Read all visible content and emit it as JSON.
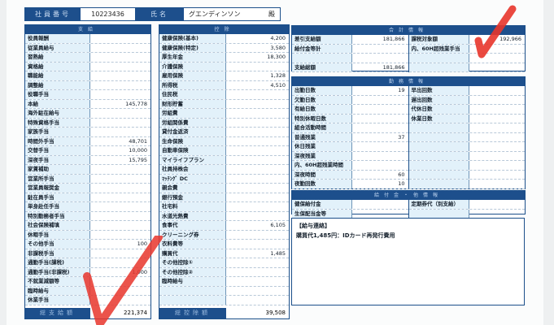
{
  "header": {
    "employee_no_label": "社員番号",
    "employee_no": "10223436",
    "name_label": "氏名",
    "name": "グエンディンソン",
    "honorific": "殿"
  },
  "payments": {
    "title": "支給",
    "items": [
      [
        "役員報酬",
        ""
      ],
      [
        "従業員給与",
        ""
      ],
      [
        "習熟給",
        ""
      ],
      [
        "資格給",
        ""
      ],
      [
        "職能給",
        ""
      ],
      [
        "調整給",
        ""
      ],
      [
        "役職手当",
        ""
      ],
      [
        "本給",
        "145,778"
      ],
      [
        "海外駐在給与",
        ""
      ],
      [
        "特殊資格手当",
        ""
      ],
      [
        "家族手当",
        ""
      ],
      [
        "時間外手当",
        "48,701"
      ],
      [
        "交替手当",
        "10,000"
      ],
      [
        "深夜手当",
        "15,795"
      ],
      [
        "家賃補助",
        ""
      ],
      [
        "営業所手当",
        ""
      ],
      [
        "営業員報奨金",
        ""
      ],
      [
        "駐在員手当",
        ""
      ],
      [
        "単身赴任手当",
        ""
      ],
      [
        "特別勤務者手当",
        ""
      ],
      [
        "社会保険補填",
        ""
      ],
      [
        "休暇手当",
        ""
      ],
      [
        "その他手当",
        "100"
      ],
      [
        "非課税手当",
        ""
      ],
      [
        "通勤手当(課税)",
        ""
      ],
      [
        "通勤手当(非課税)",
        "1,000"
      ],
      [
        "不就業減額等",
        ""
      ],
      [
        "臨時給与",
        ""
      ],
      [
        "休業手当",
        ""
      ]
    ],
    "total_label": "総支給額",
    "total": "221,374"
  },
  "deductions": {
    "title": "控除",
    "items": [
      [
        "健康保険(基本)",
        "4,200"
      ],
      [
        "健康保険(特定)",
        "3,580"
      ],
      [
        "厚生年金",
        "18,300"
      ],
      [
        "介護保険",
        ""
      ],
      [
        "雇用保険",
        "1,328"
      ],
      [
        "所得税",
        "4,510"
      ],
      [
        "住民税",
        ""
      ],
      [
        "財形貯蓄",
        ""
      ],
      [
        "労組費",
        ""
      ],
      [
        "労組関係費",
        ""
      ],
      [
        "貸付金返済",
        ""
      ],
      [
        "生命保険",
        ""
      ],
      [
        "自動車保険",
        ""
      ],
      [
        "マイライフプラン",
        ""
      ],
      [
        "社員持株会",
        ""
      ],
      [
        "ﾏｯﾁﾝｸﾞ DC",
        ""
      ],
      [
        "親会費",
        ""
      ],
      [
        "銀行預金",
        ""
      ],
      [
        "社宅料",
        ""
      ],
      [
        "水道光熱費",
        ""
      ],
      [
        "食事代",
        "6,105"
      ],
      [
        "クリーニング券",
        ""
      ],
      [
        "衣料費等",
        ""
      ],
      [
        "購買代",
        "1,485"
      ],
      [
        "その他控除①",
        ""
      ],
      [
        "その他控除②",
        ""
      ],
      [
        "臨時給与",
        ""
      ],
      [
        "",
        ""
      ],
      [
        "",
        ""
      ]
    ],
    "total_label": "総控除額",
    "total": "39,508"
  },
  "totals": {
    "title": "合計情報",
    "left": [
      [
        "差引支給額",
        "181,866"
      ],
      [
        "給付金等計",
        ""
      ],
      [
        "",
        ""
      ],
      [
        "支給総額",
        "181,866"
      ]
    ],
    "right": [
      [
        "課税対象額",
        "192,966"
      ],
      [
        "内、60H超残業手当",
        ""
      ],
      [
        "",
        ""
      ],
      [
        "",
        ""
      ]
    ]
  },
  "attendance": {
    "title": "勤務情報",
    "left": [
      [
        "出勤日数",
        "19"
      ],
      [
        "欠勤日数",
        ""
      ],
      [
        "有給日数",
        ""
      ],
      [
        "特別休暇日数",
        ""
      ],
      [
        "組合活動時間",
        ""
      ],
      [
        "普通残業",
        "37"
      ],
      [
        "休日残業",
        ""
      ],
      [
        "深夜残業",
        ""
      ],
      [
        "内、60H超残業時間",
        ""
      ],
      [
        "深夜時間",
        "60"
      ],
      [
        "夜勤回数",
        "10"
      ]
    ],
    "right": [
      [
        "早出回数",
        ""
      ],
      [
        "遅出回数",
        ""
      ],
      [
        "代休日数",
        ""
      ],
      [
        "休業日数",
        ""
      ],
      [
        "",
        ""
      ],
      [
        "",
        ""
      ],
      [
        "",
        ""
      ],
      [
        "",
        ""
      ],
      [
        "",
        ""
      ],
      [
        "",
        ""
      ],
      [
        "",
        ""
      ]
    ]
  },
  "benefits": {
    "title": "給付金・他情報",
    "left": [
      [
        "健保給付金",
        ""
      ],
      [
        "生保配当金等",
        ""
      ]
    ],
    "right": [
      [
        "定期券代（別支給）",
        ""
      ],
      [
        "",
        ""
      ]
    ]
  },
  "memo": {
    "title": "【給与連絡】",
    "text": "購買代1,485円：IDカード再発行費用"
  },
  "colors": {
    "header_blue": "#1d4f8c",
    "label_bg": "#e2f1fa",
    "check_red": "#e8352b"
  }
}
